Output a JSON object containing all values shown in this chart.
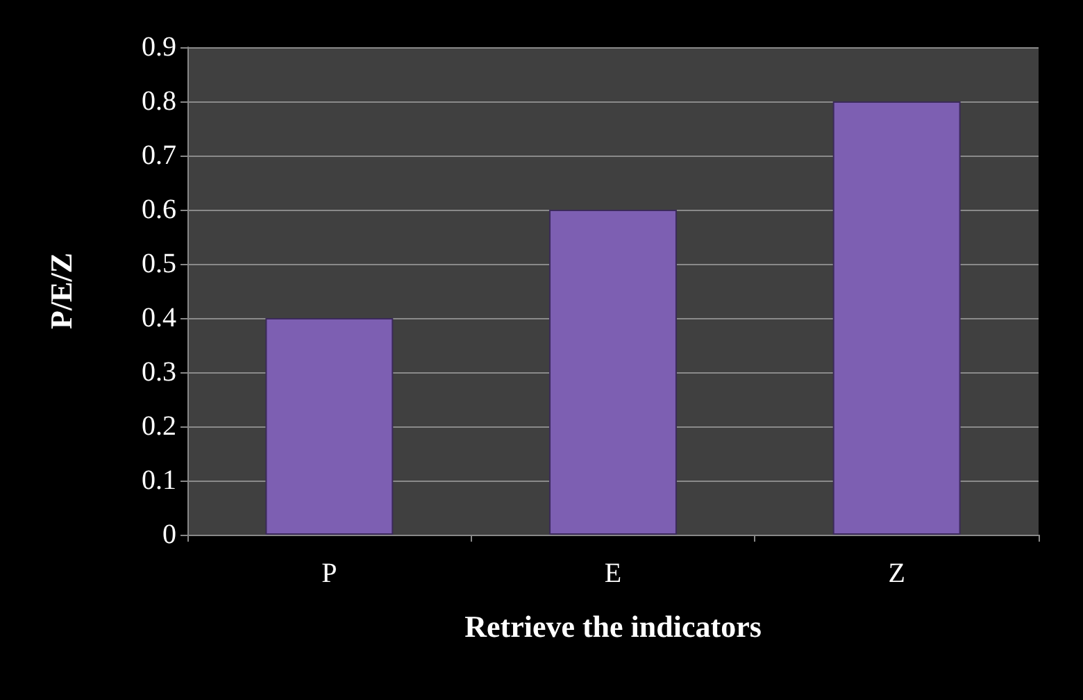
{
  "chart_data": {
    "type": "bar",
    "xlabel": "Retrieve the indicators",
    "ylabel": "P/E/Z",
    "categories": [
      "P",
      "E",
      "Z"
    ],
    "values": [
      0.4,
      0.6,
      0.8
    ],
    "color": "#7d5fb2",
    "ylim": [
      0,
      0.9
    ],
    "yticks": [
      0,
      0.1,
      0.2,
      0.3,
      0.4,
      0.5,
      0.6,
      0.7,
      0.8,
      0.9
    ],
    "grid": "y"
  }
}
